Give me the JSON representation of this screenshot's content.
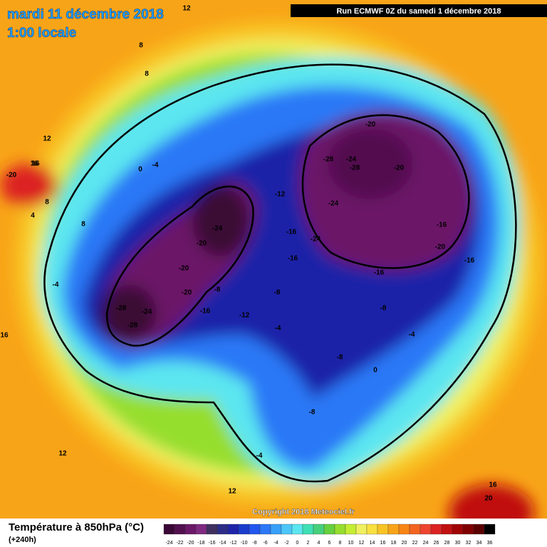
{
  "header": {
    "date": "mardi 11 décembre 2018",
    "time": "1:00 locale",
    "run": "Run ECMWF 0Z du samedi 1 décembre 2018"
  },
  "copyright": "Copyright 2018 Meteociel.fr",
  "footer": {
    "title": "Température à 850hPa (°C)",
    "lead": "(+240h)"
  },
  "legend": {
    "items": [
      {
        "label": -24,
        "color": "#3a0836"
      },
      {
        "label": -22,
        "color": "#52104f"
      },
      {
        "label": -20,
        "color": "#6c1868"
      },
      {
        "label": -18,
        "color": "#7e2a80"
      },
      {
        "label": -16,
        "color": "#40305e"
      },
      {
        "label": -14,
        "color": "#2c2c86"
      },
      {
        "label": -12,
        "color": "#1e24a8"
      },
      {
        "label": -10,
        "color": "#1a3ccc"
      },
      {
        "label": -8,
        "color": "#2256ee"
      },
      {
        "label": -6,
        "color": "#2c78f6"
      },
      {
        "label": -4,
        "color": "#38a0f8"
      },
      {
        "label": -2,
        "color": "#4cc6f8"
      },
      {
        "label": 0,
        "color": "#5ce6f0"
      },
      {
        "label": 2,
        "color": "#3ee0b4"
      },
      {
        "label": 4,
        "color": "#46d07c"
      },
      {
        "label": 6,
        "color": "#66d03e"
      },
      {
        "label": 8,
        "color": "#96de2e"
      },
      {
        "label": 10,
        "color": "#c4ee32"
      },
      {
        "label": 12,
        "color": "#f0f060"
      },
      {
        "label": 14,
        "color": "#f8e040"
      },
      {
        "label": 16,
        "color": "#f8c424"
      },
      {
        "label": 18,
        "color": "#f8a418"
      },
      {
        "label": 20,
        "color": "#f88414"
      },
      {
        "label": 22,
        "color": "#f26420"
      },
      {
        "label": 24,
        "color": "#ee4430"
      },
      {
        "label": 26,
        "color": "#dc2222"
      },
      {
        "label": 28,
        "color": "#c01010"
      },
      {
        "label": 30,
        "color": "#a00404"
      },
      {
        "label": 32,
        "color": "#800000"
      },
      {
        "label": 34,
        "color": "#5a0000"
      },
      {
        "label": 36,
        "color": "#000000"
      }
    ]
  },
  "map": {
    "labels": [
      "12",
      "8",
      "8",
      "16",
      "-20",
      "0",
      "-4",
      "8",
      "4",
      "8",
      "-4",
      "-28",
      "-24",
      "-28",
      "-20",
      "-20",
      "-24",
      "-20",
      "-16",
      "-16",
      "-12",
      "-8",
      "-12",
      "-16",
      "-8",
      "-4",
      "-28",
      "-24",
      "-28",
      "-20",
      "-24",
      "-24",
      "-20",
      "-16",
      "-20",
      "-16",
      "-16",
      "-8",
      "-4",
      "-8",
      "0",
      "-8",
      "-4",
      "12",
      "16",
      "16",
      "12",
      "12",
      "16",
      "20"
    ]
  }
}
